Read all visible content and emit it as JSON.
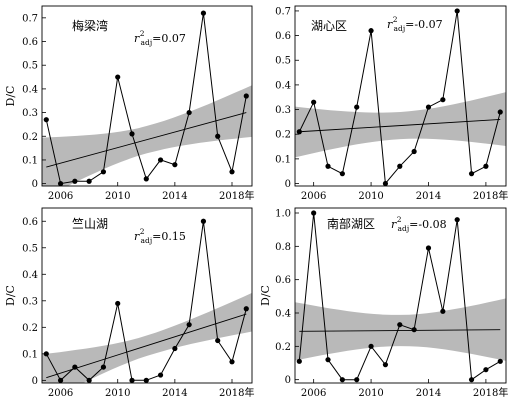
{
  "chart_data": [
    {
      "type": "line",
      "title": "梅梁湾",
      "stat_r": "r",
      "stat_sup": "2",
      "stat_sub": "adj",
      "stat_val": "=0.07",
      "ylabel": "D/C",
      "xlabel": "",
      "xlim": [
        2004.7,
        2019.4
      ],
      "ylim": [
        -0.01,
        0.75
      ],
      "x_ticks": [
        2006,
        2010,
        2014,
        2018
      ],
      "x_tick_labels": [
        "2006",
        "2010",
        "2014",
        "2018年"
      ],
      "y_ticks": [
        0,
        0.1,
        0.2,
        0.3,
        0.4,
        0.5,
        0.6,
        0.7
      ],
      "y_tick_labels": [
        "0",
        "0.1",
        "0.2",
        "0.3",
        "0.4",
        "0.5",
        "0.6",
        "0.7"
      ],
      "x": [
        2005,
        2006,
        2007,
        2008,
        2009,
        2010,
        2011,
        2012,
        2013,
        2014,
        2015,
        2016,
        2017,
        2018,
        2019
      ],
      "values": [
        0.27,
        0.0,
        0.01,
        0.01,
        0.05,
        0.45,
        0.21,
        0.02,
        0.1,
        0.08,
        0.3,
        0.72,
        0.2,
        0.05,
        0.37
      ],
      "fit": [
        0.07,
        0.3
      ],
      "band_lo": [
        -0.07,
        0.19
      ],
      "band_hi": [
        0.18,
        0.4
      ]
    },
    {
      "type": "line",
      "title": "湖心区",
      "stat_r": "r",
      "stat_sup": "2",
      "stat_sub": "adj",
      "stat_val": "=-0.07",
      "ylabel": "",
      "xlabel": "",
      "xlim": [
        2004.7,
        2019.4
      ],
      "ylim": [
        -0.01,
        0.72
      ],
      "x_ticks": [
        2006,
        2010,
        2014,
        2018
      ],
      "x_tick_labels": [
        "2006",
        "2010",
        "2014",
        "2018年"
      ],
      "y_ticks": [
        0,
        0.1,
        0.2,
        0.3,
        0.4,
        0.5,
        0.6,
        0.7
      ],
      "y_tick_labels": [
        "0",
        "0.1",
        "0.2",
        "0.3",
        "0.4",
        "0.5",
        "0.6",
        "0.7"
      ],
      "x": [
        2005,
        2006,
        2007,
        2008,
        2009,
        2010,
        2011,
        2012,
        2013,
        2014,
        2015,
        2016,
        2017,
        2018,
        2019
      ],
      "values": [
        0.21,
        0.33,
        0.07,
        0.04,
        0.31,
        0.62,
        0.0,
        0.07,
        0.13,
        0.31,
        0.34,
        0.7,
        0.04,
        0.07,
        0.29
      ],
      "fit": [
        0.21,
        0.26
      ],
      "band_lo": [
        0.11,
        0.16
      ],
      "band_hi": [
        0.31,
        0.37
      ]
    },
    {
      "type": "line",
      "title": "竺山湖",
      "stat_r": "r",
      "stat_sup": "2",
      "stat_sub": "adj",
      "stat_val": "=0.15",
      "ylabel": "D/C",
      "xlabel": "",
      "xlim": [
        2004.7,
        2019.4
      ],
      "ylim": [
        -0.01,
        0.65
      ],
      "x_ticks": [
        2006,
        2010,
        2014,
        2018
      ],
      "x_tick_labels": [
        "2006",
        "2010",
        "2014",
        "2018年"
      ],
      "y_ticks": [
        0,
        0.1,
        0.2,
        0.3,
        0.4,
        0.5,
        0.6
      ],
      "y_tick_labels": [
        "0",
        "0.1",
        "0.2",
        "0.3",
        "0.4",
        "0.5",
        "0.6"
      ],
      "x": [
        2005,
        2006,
        2007,
        2008,
        2009,
        2010,
        2011,
        2012,
        2013,
        2014,
        2015,
        2016,
        2017,
        2018,
        2019
      ],
      "values": [
        0.1,
        0.0,
        0.05,
        0.0,
        0.05,
        0.29,
        0.0,
        0.0,
        0.02,
        0.12,
        0.21,
        0.6,
        0.15,
        0.07,
        0.27
      ],
      "fit": [
        0.01,
        0.25
      ],
      "band_lo": [
        -0.08,
        0.18
      ],
      "band_hi": [
        0.1,
        0.32
      ]
    },
    {
      "type": "line",
      "title": "南部湖区",
      "stat_r": "r",
      "stat_sup": "2",
      "stat_sub": "adj",
      "stat_val": "=-0.08",
      "ylabel": "D/C",
      "xlabel": "",
      "xlim": [
        2004.7,
        2019.4
      ],
      "ylim": [
        -0.02,
        1.03
      ],
      "x_ticks": [
        2006,
        2010,
        2014,
        2018
      ],
      "x_tick_labels": [
        "2006",
        "2010",
        "2014",
        "2018年"
      ],
      "y_ticks": [
        0,
        0.2,
        0.4,
        0.6,
        0.8,
        1.0
      ],
      "y_tick_labels": [
        "0",
        "0.2",
        "0.4",
        "0.6",
        "0.8",
        "1.0"
      ],
      "x": [
        2005,
        2006,
        2007,
        2008,
        2009,
        2010,
        2011,
        2012,
        2013,
        2014,
        2015,
        2016,
        2017,
        2018,
        2019
      ],
      "values": [
        0.11,
        1.0,
        0.12,
        0.0,
        0.0,
        0.2,
        0.09,
        0.33,
        0.3,
        0.79,
        0.41,
        0.96,
        0.0,
        0.06,
        0.11
      ],
      "fit": [
        0.29,
        0.3
      ],
      "band_lo": [
        0.12,
        0.12
      ],
      "band_hi": [
        0.46,
        0.48
      ]
    }
  ]
}
